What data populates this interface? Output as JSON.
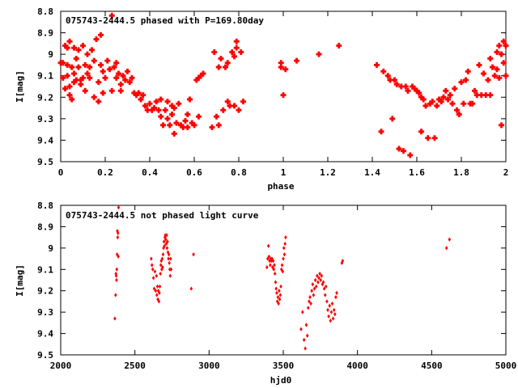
{
  "chart_data": [
    {
      "type": "scatter",
      "title": "075743-2444.5 phased with P=169.80day",
      "xlabel": "phase",
      "ylabel": "I[mag]",
      "xlim": [
        0,
        2
      ],
      "ylim": [
        8.8,
        9.5
      ],
      "y_inverted": true,
      "xticks": [
        0,
        0.2,
        0.4,
        0.6,
        0.8,
        1,
        1.2,
        1.4,
        1.6,
        1.8,
        2
      ],
      "xtick_labels": [
        "0",
        "0.2",
        "0.4",
        "0.6",
        "0.8",
        "1",
        "1.2",
        "1.4",
        "1.6",
        "1.8",
        "2"
      ],
      "yticks": [
        8.8,
        8.9,
        9.0,
        9.1,
        9.2,
        9.3,
        9.4,
        9.5
      ],
      "ytick_labels": [
        "8.8",
        "8.9",
        "9",
        "9.1",
        "9.2",
        "9.3",
        "9.4",
        "9.5"
      ],
      "marker": "star",
      "color": "#ff0000",
      "points": [
        [
          0.0,
          9.04
        ],
        [
          0.01,
          9.04
        ],
        [
          0.01,
          9.11
        ],
        [
          0.02,
          9.16
        ],
        [
          0.02,
          8.96
        ],
        [
          0.03,
          9.05
        ],
        [
          0.03,
          9.1
        ],
        [
          0.03,
          8.97
        ],
        [
          0.04,
          9.15
        ],
        [
          0.04,
          9.19
        ],
        [
          0.04,
          8.94
        ],
        [
          0.05,
          9.06
        ],
        [
          0.05,
          9.21
        ],
        [
          0.06,
          8.97
        ],
        [
          0.06,
          9.09
        ],
        [
          0.06,
          9.13
        ],
        [
          0.07,
          9.02
        ],
        [
          0.07,
          9.12
        ],
        [
          0.08,
          8.98
        ],
        [
          0.08,
          9.06
        ],
        [
          0.09,
          9.14
        ],
        [
          0.09,
          9.12
        ],
        [
          0.1,
          9.11
        ],
        [
          0.1,
          8.96
        ],
        [
          0.11,
          9.05
        ],
        [
          0.11,
          9.17
        ],
        [
          0.12,
          9.09
        ],
        [
          0.12,
          9.0
        ],
        [
          0.13,
          9.06
        ],
        [
          0.13,
          9.11
        ],
        [
          0.14,
          8.98
        ],
        [
          0.15,
          9.03
        ],
        [
          0.15,
          9.2
        ],
        [
          0.16,
          8.93
        ],
        [
          0.17,
          9.13
        ],
        [
          0.17,
          9.22
        ],
        [
          0.18,
          9.05
        ],
        [
          0.18,
          8.91
        ],
        [
          0.19,
          9.08
        ],
        [
          0.19,
          9.18
        ],
        [
          0.2,
          9.11
        ],
        [
          0.21,
          9.03
        ],
        [
          0.22,
          9.07
        ],
        [
          0.23,
          8.82
        ],
        [
          0.23,
          9.17
        ],
        [
          0.24,
          9.06
        ],
        [
          0.25,
          9.11
        ],
        [
          0.25,
          9.04
        ],
        [
          0.26,
          9.09
        ],
        [
          0.27,
          9.14
        ],
        [
          0.27,
          9.17
        ],
        [
          0.28,
          9.1
        ],
        [
          0.29,
          9.12
        ],
        [
          0.3,
          9.08
        ],
        [
          0.31,
          9.13
        ],
        [
          0.32,
          9.11
        ],
        [
          0.33,
          9.18
        ],
        [
          0.34,
          9.19
        ],
        [
          0.35,
          9.18
        ],
        [
          0.36,
          9.21
        ],
        [
          0.37,
          9.19
        ],
        [
          0.38,
          9.24
        ],
        [
          0.39,
          9.26
        ],
        [
          0.4,
          9.23
        ],
        [
          0.41,
          9.26
        ],
        [
          0.42,
          9.25
        ],
        [
          0.43,
          9.22
        ],
        [
          0.44,
          9.26
        ],
        [
          0.45,
          9.21
        ],
        [
          0.45,
          9.29
        ],
        [
          0.46,
          9.33
        ],
        [
          0.47,
          9.26
        ],
        [
          0.48,
          9.3
        ],
        [
          0.48,
          9.22
        ],
        [
          0.49,
          9.33
        ],
        [
          0.5,
          9.28
        ],
        [
          0.5,
          9.24
        ],
        [
          0.51,
          9.37
        ],
        [
          0.51,
          9.25
        ],
        [
          0.52,
          9.32
        ],
        [
          0.53,
          9.23
        ],
        [
          0.54,
          9.33
        ],
        [
          0.55,
          9.34
        ],
        [
          0.56,
          9.31
        ],
        [
          0.57,
          9.28
        ],
        [
          0.57,
          9.34
        ],
        [
          0.58,
          9.21
        ],
        [
          0.59,
          9.32
        ],
        [
          0.6,
          9.33
        ],
        [
          0.61,
          9.12
        ],
        [
          0.62,
          9.29
        ],
        [
          0.62,
          9.11
        ],
        [
          0.63,
          9.1
        ],
        [
          0.64,
          9.09
        ],
        [
          0.68,
          9.34
        ],
        [
          0.69,
          8.99
        ],
        [
          0.7,
          9.29
        ],
        [
          0.71,
          9.33
        ],
        [
          0.71,
          9.06
        ],
        [
          0.72,
          9.02
        ],
        [
          0.73,
          9.26
        ],
        [
          0.74,
          9.06
        ],
        [
          0.75,
          9.04
        ],
        [
          0.75,
          9.22
        ],
        [
          0.76,
          9.24
        ],
        [
          0.77,
          8.99
        ],
        [
          0.78,
          9.01
        ],
        [
          0.78,
          9.24
        ],
        [
          0.79,
          8.97
        ],
        [
          0.79,
          8.94
        ],
        [
          0.8,
          9.26
        ],
        [
          0.81,
          8.99
        ],
        [
          0.82,
          9.22
        ],
        [
          0.99,
          9.06
        ],
        [
          0.99,
          9.04
        ],
        [
          1.0,
          9.19
        ],
        [
          1.01,
          9.07
        ],
        [
          1.06,
          9.03
        ],
        [
          1.16,
          9.0
        ],
        [
          1.25,
          8.96
        ],
        [
          1.42,
          9.05
        ],
        [
          1.44,
          9.36
        ],
        [
          1.45,
          9.08
        ],
        [
          1.47,
          9.1
        ],
        [
          1.48,
          9.12
        ],
        [
          1.49,
          9.3
        ],
        [
          1.5,
          9.12
        ],
        [
          1.51,
          9.14
        ],
        [
          1.52,
          9.44
        ],
        [
          1.53,
          9.15
        ],
        [
          1.54,
          9.45
        ],
        [
          1.55,
          9.15
        ],
        [
          1.56,
          9.17
        ],
        [
          1.57,
          9.47
        ],
        [
          1.58,
          9.15
        ],
        [
          1.59,
          9.16
        ],
        [
          1.6,
          9.17
        ],
        [
          1.61,
          9.18
        ],
        [
          1.62,
          9.2
        ],
        [
          1.62,
          9.36
        ],
        [
          1.63,
          9.21
        ],
        [
          1.64,
          9.24
        ],
        [
          1.65,
          9.39
        ],
        [
          1.66,
          9.23
        ],
        [
          1.67,
          9.22
        ],
        [
          1.68,
          9.39
        ],
        [
          1.69,
          9.24
        ],
        [
          1.7,
          9.21
        ],
        [
          1.71,
          9.22
        ],
        [
          1.72,
          9.2
        ],
        [
          1.73,
          9.17
        ],
        [
          1.74,
          9.21
        ],
        [
          1.75,
          9.19
        ],
        [
          1.76,
          9.23
        ],
        [
          1.77,
          9.16
        ],
        [
          1.78,
          9.26
        ],
        [
          1.79,
          9.28
        ],
        [
          1.8,
          9.13
        ],
        [
          1.81,
          9.23
        ],
        [
          1.82,
          9.12
        ],
        [
          1.83,
          9.08
        ],
        [
          1.84,
          9.23
        ],
        [
          1.85,
          9.23
        ],
        [
          1.86,
          9.17
        ],
        [
          1.87,
          9.19
        ],
        [
          1.88,
          9.05
        ],
        [
          1.89,
          9.19
        ],
        [
          1.9,
          9.09
        ],
        [
          1.91,
          9.19
        ],
        [
          1.92,
          9.12
        ],
        [
          1.93,
          9.02
        ],
        [
          1.93,
          9.19
        ],
        [
          1.94,
          9.06
        ],
        [
          1.95,
          9.1
        ],
        [
          1.96,
          8.99
        ],
        [
          1.96,
          9.07
        ],
        [
          1.97,
          9.11
        ],
        [
          1.97,
          8.96
        ],
        [
          1.98,
          9.0
        ],
        [
          1.98,
          9.33
        ],
        [
          1.99,
          8.94
        ],
        [
          1.99,
          9.04
        ],
        [
          2.0,
          8.96
        ],
        [
          2.0,
          9.1
        ]
      ]
    },
    {
      "type": "scatter",
      "title": "075743-2444.5 not phased light curve",
      "xlabel": "hjd0",
      "ylabel": "I[mag]",
      "xlim": [
        2000,
        5000
      ],
      "ylim": [
        8.8,
        9.5
      ],
      "y_inverted": true,
      "xticks": [
        2000,
        2500,
        3000,
        3500,
        4000,
        4500,
        5000
      ],
      "xtick_labels": [
        "2000",
        "2500",
        "3000",
        "3500",
        "4000",
        "4500",
        "5000"
      ],
      "yticks": [
        8.8,
        8.9,
        9.0,
        9.1,
        9.2,
        9.3,
        9.4,
        9.5
      ],
      "ytick_labels": [
        "8.8",
        "8.9",
        "9",
        "9.1",
        "9.2",
        "9.3",
        "9.4",
        "9.5"
      ],
      "marker": "diamond",
      "color": "#ff0000",
      "points": [
        [
          2365,
          9.33
        ],
        [
          2370,
          9.22
        ],
        [
          2372,
          9.12
        ],
        [
          2374,
          9.13
        ],
        [
          2376,
          9.15
        ],
        [
          2378,
          9.1
        ],
        [
          2380,
          9.03
        ],
        [
          2382,
          8.92
        ],
        [
          2384,
          8.95
        ],
        [
          2386,
          8.93
        ],
        [
          2388,
          9.04
        ],
        [
          2390,
          8.81
        ],
        [
          2610,
          9.05
        ],
        [
          2615,
          9.08
        ],
        [
          2620,
          9.1
        ],
        [
          2625,
          9.14
        ],
        [
          2630,
          9.19
        ],
        [
          2635,
          9.11
        ],
        [
          2640,
          9.2
        ],
        [
          2645,
          9.13
        ],
        [
          2648,
          9.22
        ],
        [
          2652,
          9.18
        ],
        [
          2655,
          9.24
        ],
        [
          2658,
          9.2
        ],
        [
          2662,
          9.25
        ],
        [
          2665,
          9.21
        ],
        [
          2668,
          9.18
        ],
        [
          2672,
          9.12
        ],
        [
          2675,
          9.08
        ],
        [
          2678,
          9.06
        ],
        [
          2681,
          9.1
        ],
        [
          2684,
          9.05
        ],
        [
          2687,
          9.09
        ],
        [
          2690,
          9.03
        ],
        [
          2693,
          9.0
        ],
        [
          2696,
          8.97
        ],
        [
          2699,
          8.99
        ],
        [
          2702,
          8.95
        ],
        [
          2705,
          8.94
        ],
        [
          2708,
          8.96
        ],
        [
          2711,
          8.98
        ],
        [
          2714,
          8.94
        ],
        [
          2717,
          9.0
        ],
        [
          2720,
          8.97
        ],
        [
          2723,
          9.02
        ],
        [
          2726,
          9.05
        ],
        [
          2729,
          9.03
        ],
        [
          2732,
          9.07
        ],
        [
          2735,
          9.1
        ],
        [
          2738,
          9.13
        ],
        [
          2741,
          9.05
        ],
        [
          2744,
          9.1
        ],
        [
          2880,
          9.19
        ],
        [
          2895,
          9.03
        ],
        [
          3390,
          9.09
        ],
        [
          3395,
          9.05
        ],
        [
          3400,
          8.99
        ],
        [
          3404,
          9.04
        ],
        [
          3408,
          9.06
        ],
        [
          3412,
          9.08
        ],
        [
          3416,
          9.05
        ],
        [
          3420,
          9.06
        ],
        [
          3424,
          9.05
        ],
        [
          3428,
          9.09
        ],
        [
          3432,
          9.06
        ],
        [
          3436,
          9.1
        ],
        [
          3440,
          9.08
        ],
        [
          3444,
          9.12
        ],
        [
          3448,
          9.16
        ],
        [
          3452,
          9.19
        ],
        [
          3456,
          9.21
        ],
        [
          3460,
          9.25
        ],
        [
          3464,
          9.23
        ],
        [
          3468,
          9.26
        ],
        [
          3472,
          9.2
        ],
        [
          3476,
          9.24
        ],
        [
          3480,
          9.22
        ],
        [
          3484,
          9.18
        ],
        [
          3488,
          9.1
        ],
        [
          3492,
          9.08
        ],
        [
          3496,
          9.11
        ],
        [
          3500,
          9.05
        ],
        [
          3504,
          9.0
        ],
        [
          3508,
          9.03
        ],
        [
          3512,
          8.98
        ],
        [
          3516,
          8.95
        ],
        [
          3620,
          9.38
        ],
        [
          3630,
          9.3
        ],
        [
          3640,
          9.43
        ],
        [
          3648,
          9.47
        ],
        [
          3655,
          9.36
        ],
        [
          3662,
          9.41
        ],
        [
          3668,
          9.28
        ],
        [
          3674,
          9.25
        ],
        [
          3680,
          9.23
        ],
        [
          3686,
          9.26
        ],
        [
          3692,
          9.2
        ],
        [
          3698,
          9.17
        ],
        [
          3704,
          9.22
        ],
        [
          3710,
          9.19
        ],
        [
          3716,
          9.15
        ],
        [
          3722,
          9.18
        ],
        [
          3728,
          9.13
        ],
        [
          3734,
          9.16
        ],
        [
          3740,
          9.14
        ],
        [
          3746,
          9.12
        ],
        [
          3752,
          9.15
        ],
        [
          3758,
          9.13
        ],
        [
          3764,
          9.17
        ],
        [
          3770,
          9.16
        ],
        [
          3776,
          9.19
        ],
        [
          3782,
          9.22
        ],
        [
          3788,
          9.18
        ],
        [
          3794,
          9.25
        ],
        [
          3800,
          9.29
        ],
        [
          3806,
          9.32
        ],
        [
          3812,
          9.27
        ],
        [
          3818,
          9.34
        ],
        [
          3824,
          9.3
        ],
        [
          3830,
          9.26
        ],
        [
          3836,
          9.33
        ],
        [
          3842,
          9.29
        ],
        [
          3848,
          9.31
        ],
        [
          3854,
          9.23
        ],
        [
          3860,
          9.21
        ],
        [
          3895,
          9.07
        ],
        [
          3900,
          9.06
        ],
        [
          4600,
          9.0
        ],
        [
          4620,
          8.96
        ]
      ]
    }
  ]
}
